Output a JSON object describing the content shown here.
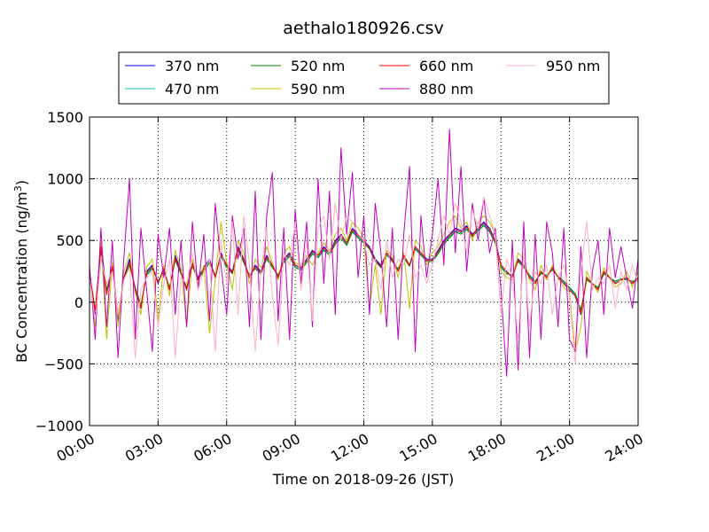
{
  "chart_data": {
    "type": "line",
    "title": "aethalo180926.csv",
    "xlabel": "Time on 2018-09-26 (JST)",
    "ylabel_main": "BC Concentration (ng/m",
    "ylabel_sup": "3",
    "ylabel_tail": ")",
    "xlim": [
      0,
      24
    ],
    "ylim": [
      -1000,
      1500
    ],
    "x_ticks": [
      {
        "value": 0,
        "label": "00:00"
      },
      {
        "value": 3,
        "label": "03:00"
      },
      {
        "value": 6,
        "label": "06:00"
      },
      {
        "value": 9,
        "label": "09:00"
      },
      {
        "value": 12,
        "label": "12:00"
      },
      {
        "value": 15,
        "label": "15:00"
      },
      {
        "value": 18,
        "label": "18:00"
      },
      {
        "value": 21,
        "label": "21:00"
      },
      {
        "value": 24,
        "label": "24:00"
      }
    ],
    "y_ticks": [
      {
        "value": -1000,
        "label": "−1000"
      },
      {
        "value": -500,
        "label": "−500"
      },
      {
        "value": 0,
        "label": "0"
      },
      {
        "value": 500,
        "label": "500"
      },
      {
        "value": 1000,
        "label": "1000"
      },
      {
        "value": 1500,
        "label": "1500"
      }
    ],
    "grid": true,
    "legend_position": "top",
    "x_hours": [
      0.0,
      0.25,
      0.5,
      0.75,
      1.0,
      1.25,
      1.5,
      1.75,
      2.0,
      2.25,
      2.5,
      2.75,
      3.0,
      3.25,
      3.5,
      3.75,
      4.0,
      4.25,
      4.5,
      4.75,
      5.0,
      5.25,
      5.5,
      5.75,
      6.0,
      6.25,
      6.5,
      6.75,
      7.0,
      7.25,
      7.5,
      7.75,
      8.0,
      8.25,
      8.5,
      8.75,
      9.0,
      9.25,
      9.5,
      9.75,
      10.0,
      10.25,
      10.5,
      10.75,
      11.0,
      11.25,
      11.5,
      11.75,
      12.0,
      12.25,
      12.5,
      12.75,
      13.0,
      13.25,
      13.5,
      13.75,
      14.0,
      14.25,
      14.5,
      14.75,
      15.0,
      15.25,
      15.5,
      15.75,
      16.0,
      16.25,
      16.5,
      16.75,
      17.0,
      17.25,
      17.5,
      17.75,
      18.0,
      18.25,
      18.5,
      18.75,
      19.0,
      19.25,
      19.5,
      19.75,
      20.0,
      20.25,
      20.5,
      20.75,
      21.0,
      21.25,
      21.5,
      21.75,
      22.0,
      22.25,
      22.5,
      22.75,
      23.0,
      23.25,
      23.5,
      23.75,
      24.0
    ],
    "series": [
      {
        "name": "370 nm",
        "color": "#0000ff",
        "values": [
          250,
          -100,
          480,
          80,
          300,
          -150,
          200,
          350,
          100,
          -50,
          250,
          300,
          150,
          280,
          100,
          380,
          250,
          100,
          320,
          200,
          280,
          350,
          200,
          400,
          300,
          250,
          450,
          350,
          200,
          300,
          250,
          380,
          300,
          200,
          350,
          400,
          300,
          280,
          350,
          420,
          380,
          450,
          400,
          500,
          550,
          480,
          600,
          550,
          500,
          450,
          350,
          300,
          400,
          350,
          250,
          380,
          300,
          450,
          400,
          350,
          350,
          420,
          500,
          550,
          600,
          580,
          620,
          550,
          600,
          650,
          600,
          500,
          300,
          250,
          200,
          350,
          300,
          200,
          150,
          250,
          200,
          280,
          200,
          150,
          100,
          50,
          -100,
          200,
          150,
          100,
          250,
          200,
          150,
          180,
          200,
          150,
          200
        ]
      },
      {
        "name": "470 nm",
        "color": "#00c0c0",
        "values": [
          230,
          -80,
          440,
          90,
          280,
          -120,
          190,
          320,
          110,
          -30,
          230,
          280,
          160,
          260,
          110,
          350,
          240,
          110,
          300,
          190,
          260,
          330,
          210,
          380,
          290,
          240,
          430,
          330,
          210,
          280,
          240,
          360,
          290,
          210,
          330,
          380,
          290,
          270,
          330,
          400,
          370,
          430,
          390,
          480,
          530,
          470,
          580,
          530,
          490,
          440,
          340,
          290,
          390,
          340,
          260,
          370,
          300,
          440,
          390,
          340,
          340,
          400,
          480,
          530,
          580,
          560,
          600,
          540,
          590,
          630,
          580,
          490,
          290,
          240,
          210,
          340,
          290,
          210,
          160,
          240,
          210,
          270,
          200,
          160,
          110,
          60,
          -80,
          190,
          150,
          110,
          240,
          200,
          160,
          180,
          190,
          160,
          190
        ]
      },
      {
        "name": "520 nm",
        "color": "#008000",
        "values": [
          220,
          -60,
          420,
          100,
          270,
          -100,
          180,
          300,
          120,
          -20,
          220,
          270,
          170,
          250,
          120,
          340,
          230,
          120,
          290,
          180,
          250,
          320,
          220,
          370,
          280,
          230,
          420,
          320,
          220,
          270,
          230,
          350,
          280,
          220,
          320,
          370,
          280,
          260,
          320,
          390,
          360,
          420,
          380,
          470,
          520,
          460,
          570,
          520,
          480,
          430,
          330,
          280,
          380,
          330,
          270,
          360,
          290,
          430,
          380,
          330,
          330,
          390,
          470,
          520,
          570,
          550,
          590,
          530,
          580,
          620,
          570,
          480,
          280,
          230,
          220,
          330,
          280,
          220,
          170,
          230,
          220,
          260,
          210,
          170,
          120,
          70,
          -60,
          180,
          150,
          120,
          230,
          200,
          170,
          190,
          180,
          170,
          180
        ]
      },
      {
        "name": "590 nm",
        "color": "#c0c000",
        "values": [
          260,
          -200,
          500,
          -300,
          320,
          -200,
          250,
          400,
          80,
          -100,
          280,
          350,
          -150,
          300,
          50,
          420,
          280,
          -200,
          350,
          150,
          300,
          -250,
          180,
          650,
          320,
          100,
          500,
          400,
          150,
          350,
          280,
          450,
          320,
          180,
          400,
          450,
          320,
          300,
          380,
          300,
          400,
          480,
          420,
          550,
          600,
          500,
          650,
          600,
          520,
          -50,
          300,
          -100,
          420,
          380,
          200,
          400,
          -50,
          500,
          450,
          300,
          400,
          450,
          550,
          650,
          700,
          600,
          650,
          500,
          650,
          700,
          650,
          550,
          250,
          200,
          180,
          400,
          350,
          180,
          100,
          300,
          180,
          300,
          200,
          120,
          80,
          -400,
          -200,
          250,
          150,
          80,
          280,
          200,
          120,
          150,
          250,
          120,
          250
        ]
      },
      {
        "name": "660 nm",
        "color": "#ff0000",
        "values": [
          240,
          -70,
          450,
          60,
          290,
          -110,
          200,
          330,
          100,
          -40,
          240,
          290,
          160,
          270,
          100,
          360,
          240,
          100,
          310,
          190,
          270,
          340,
          200,
          390,
          300,
          240,
          440,
          340,
          200,
          290,
          240,
          370,
          300,
          200,
          340,
          390,
          300,
          280,
          340,
          410,
          380,
          440,
          400,
          490,
          540,
          480,
          590,
          540,
          500,
          440,
          340,
          290,
          400,
          340,
          250,
          380,
          300,
          450,
          400,
          340,
          340,
          410,
          490,
          540,
          590,
          570,
          610,
          540,
          600,
          640,
          590,
          500,
          300,
          250,
          200,
          340,
          300,
          200,
          150,
          250,
          200,
          280,
          200,
          150,
          100,
          50,
          -90,
          200,
          150,
          100,
          250,
          200,
          150,
          180,
          200,
          150,
          200
        ]
      },
      {
        "name": "880 nm",
        "color": "#bf00bf",
        "values": [
          300,
          -300,
          600,
          -200,
          500,
          -450,
          350,
          1000,
          -300,
          600,
          100,
          -400,
          550,
          200,
          600,
          -100,
          500,
          -200,
          650,
          100,
          550,
          -150,
          800,
          300,
          -100,
          700,
          350,
          600,
          -200,
          900,
          -300,
          700,
          1050,
          -150,
          600,
          -300,
          750,
          150,
          650,
          -200,
          1000,
          150,
          900,
          -100,
          1250,
          550,
          1050,
          200,
          700,
          -100,
          800,
          400,
          -200,
          600,
          -300,
          550,
          1100,
          -400,
          700,
          200,
          550,
          1000,
          300,
          1400,
          400,
          1100,
          250,
          800,
          500,
          850,
          400,
          600,
          100,
          -600,
          500,
          -550,
          650,
          -450,
          550,
          -300,
          650,
          400,
          -200,
          600,
          -300,
          -400,
          450,
          -450,
          250,
          500,
          -100,
          600,
          200,
          450,
          200,
          -50,
          350
        ]
      },
      {
        "name": "950 nm",
        "color": "#ffb0c0",
        "values": [
          200,
          -150,
          350,
          150,
          250,
          -100,
          180,
          280,
          -450,
          100,
          200,
          250,
          -200,
          150,
          350,
          -450,
          200,
          150,
          400,
          100,
          250,
          350,
          -400,
          500,
          150,
          650,
          -100,
          700,
          300,
          -400,
          250,
          600,
          50,
          -350,
          400,
          300,
          650,
          100,
          500,
          -150,
          600,
          700,
          350,
          800,
          500,
          700,
          650,
          550,
          500,
          300,
          350,
          100,
          500,
          200,
          350,
          300,
          550,
          200,
          300,
          150,
          300,
          500,
          700,
          550,
          800,
          650,
          400,
          750,
          600,
          850,
          700,
          550,
          -100,
          350,
          200,
          -300,
          400,
          -200,
          250,
          150,
          300,
          -100,
          200,
          300,
          50,
          -500,
          250,
          650,
          100,
          200,
          150,
          300,
          -50,
          250,
          100,
          300,
          150
        ]
      }
    ]
  }
}
